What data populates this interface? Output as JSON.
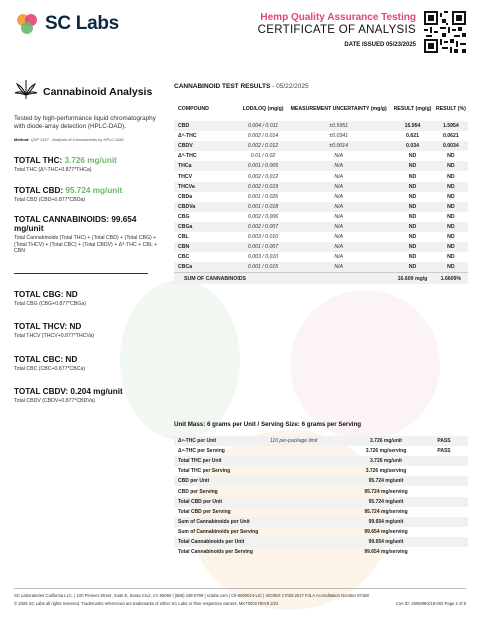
{
  "header": {
    "brand": "SC Labs",
    "subtitle": "Hemp Quality Assurance Testing",
    "title": "CERTIFICATE OF ANALYSIS",
    "date_issued": "DATE ISSUED 05/23/2025",
    "brand_color": "#0f2743",
    "accent_color": "#e0457b"
  },
  "left": {
    "section_title": "Cannabinoid Analysis",
    "icon": "cannabis-leaf-icon",
    "description": "Tested by high-performance liquid chromatography with diode-array detection (HPLC-DAD).",
    "method_label": "Method:",
    "method_text": "QSP 1157 - Analysis of Cannabinoids by HPLC-DAD",
    "stats": [
      {
        "label": "TOTAL THC:",
        "value": "3.726 mg/unit",
        "formula": "Total THC (Δ⁹-THC+0.877*THCa)"
      },
      {
        "label": "TOTAL CBD:",
        "value": "95.724 mg/unit",
        "formula": "Total CBD (CBD+0.877*CBDa)"
      },
      {
        "label": "TOTAL CANNABINOIDS:",
        "value": "99.654 mg/unit",
        "formula": "Total Cannabinoids (Total THC) + (Total CBD) + (Total CBG) + (Total THCV) + (Total CBC) + (Total CBDV) + Δ⁸-THC + CBL + CBN"
      },
      {
        "label": "TOTAL CBG:",
        "value": "ND",
        "formula": "Total CBG (CBG+0.877*CBGa)"
      },
      {
        "label": "TOTAL THCV:",
        "value": "ND",
        "formula": "Total THCV (THCV+0.877*THCVa)"
      },
      {
        "label": "TOTAL CBC:",
        "value": "ND",
        "formula": "Total CBC (CBC+0.877*CBCa)"
      },
      {
        "label": "TOTAL CBDV:",
        "value": "0.204 mg/unit",
        "formula": "Total CBDV (CBDV+0.877*CBDVa)"
      }
    ],
    "highlight_color": "#6bb86a"
  },
  "results": {
    "title": "CANNABINOID TEST RESULTS",
    "date": " - 05/22/2025",
    "columns": [
      "COMPOUND",
      "LOD/LOQ (mg/g)",
      "MEASUREMENT UNCERTAINTY (mg/g)",
      "RESULT (mg/g)",
      "RESULT (%)"
    ],
    "rows": [
      [
        "CBD",
        "0.004 / 0.011",
        "±0.5951",
        "15.954",
        "1.5954"
      ],
      [
        "Δ⁹-THC",
        "0.002 / 0.014",
        "±0.0341",
        "0.621",
        "0.0621"
      ],
      [
        "CBDV",
        "0.002 / 0.012",
        "±0.0014",
        "0.034",
        "0.0034"
      ],
      [
        "Δ⁸-THC",
        "0.01 / 0.02",
        "N/A",
        "ND",
        "ND"
      ],
      [
        "THCa",
        "0.001 / 0.005",
        "N/A",
        "ND",
        "ND"
      ],
      [
        "THCV",
        "0.002 / 0.012",
        "N/A",
        "ND",
        "ND"
      ],
      [
        "THCVa",
        "0.002 / 0.019",
        "N/A",
        "ND",
        "ND"
      ],
      [
        "CBDa",
        "0.001 / 0.026",
        "N/A",
        "ND",
        "ND"
      ],
      [
        "CBDVa",
        "0.001 / 0.018",
        "N/A",
        "ND",
        "ND"
      ],
      [
        "CBG",
        "0.002 / 0.006",
        "N/A",
        "ND",
        "ND"
      ],
      [
        "CBGa",
        "0.002 / 0.007",
        "N/A",
        "ND",
        "ND"
      ],
      [
        "CBL",
        "0.003 / 0.010",
        "N/A",
        "ND",
        "ND"
      ],
      [
        "CBN",
        "0.001 / 0.007",
        "N/A",
        "ND",
        "ND"
      ],
      [
        "CBC",
        "0.003 / 0.010",
        "N/A",
        "ND",
        "ND"
      ],
      [
        "CBCa",
        "0.001 / 0.015",
        "N/A",
        "ND",
        "ND"
      ]
    ],
    "sum": {
      "label": "SUM OF CANNABINOIDS",
      "mg": "16.609 mg/g",
      "pct": "1.6609%"
    }
  },
  "serving": {
    "title": "Unit Mass: 6 grams per Unit / Serving Size: 6 grams per Serving",
    "rows": [
      [
        "Δ⁹-THC per Unit",
        "110 per-package limit",
        "3.726 mg/unit",
        "PASS"
      ],
      [
        "Δ⁹-THC per Serving",
        "",
        "3.726 mg/serving",
        "PASS"
      ],
      [
        "Total THC per Unit",
        "",
        "3.726 mg/unit",
        ""
      ],
      [
        "Total THC per Serving",
        "",
        "3.726 mg/serving",
        ""
      ],
      [
        "CBD per Unit",
        "",
        "95.724 mg/unit",
        ""
      ],
      [
        "CBD per Serving",
        "",
        "95.724 mg/serving",
        ""
      ],
      [
        "Total CBD per Unit",
        "",
        "95.724 mg/unit",
        ""
      ],
      [
        "Total CBD per Serving",
        "",
        "95.724 mg/serving",
        ""
      ],
      [
        "Sum of Cannabinoids per Unit",
        "",
        "99.654 mg/unit",
        ""
      ],
      [
        "Sum of Cannabinoids per Serving",
        "",
        "99.654 mg/serving",
        ""
      ],
      [
        "Total Cannabinoids per Unit",
        "",
        "99.654 mg/unit",
        ""
      ],
      [
        "Total Cannabinoids per Serving",
        "",
        "99.654 mg/serving",
        ""
      ]
    ]
  },
  "footer": {
    "line1": "SC Laboratories California LLC. | 100 Pioneer Street, Suite E, Santa Cruz, CA 95060 | (866) 435-0709 | sclabs.com | C8-0000013-LIC | ISO/IES 17025:2017 PJLA Accreditation Number 87168",
    "line2_left": "© 2025 SC Labs all rights reserved. Trademarks referenced are trademarks of either SC Labs or their respective owners. MKT0002 REV9 2/22",
    "line2_right": "CoA ID: 250509K018-002  Page 2 of 8"
  }
}
